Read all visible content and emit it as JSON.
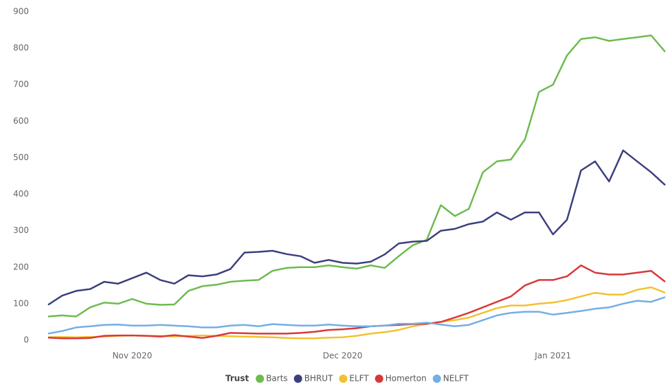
{
  "chart_data": {
    "type": "line",
    "categories": [
      null,
      null,
      null,
      null,
      null,
      null,
      "Nov 2020",
      null,
      null,
      null,
      null,
      null,
      null,
      null,
      null,
      null,
      null,
      null,
      null,
      null,
      null,
      "Dec 2020",
      null,
      null,
      null,
      null,
      null,
      null,
      null,
      null,
      null,
      null,
      null,
      null,
      null,
      null,
      "Jan 2021",
      null,
      null,
      null,
      null,
      null,
      null,
      null,
      null
    ],
    "ylim": [
      0,
      900
    ],
    "yticks": [
      0,
      100,
      200,
      300,
      400,
      500,
      600,
      700,
      800,
      900
    ],
    "grid": false,
    "legend_title": "Trust",
    "series": [
      {
        "name": "Barts",
        "color": "#6dbb4f",
        "values": [
          65,
          68,
          65,
          90,
          103,
          100,
          113,
          100,
          97,
          98,
          135,
          148,
          152,
          160,
          163,
          165,
          190,
          198,
          200,
          200,
          205,
          200,
          196,
          205,
          198,
          230,
          260,
          275,
          370,
          340,
          360,
          460,
          490,
          495,
          550,
          680,
          700,
          780,
          825,
          830,
          820,
          825,
          830,
          835,
          790
        ]
      },
      {
        "name": "BHRUT",
        "color": "#3b3f7c",
        "values": [
          97,
          122,
          135,
          140,
          160,
          155,
          170,
          185,
          165,
          155,
          178,
          175,
          180,
          195,
          240,
          242,
          245,
          236,
          230,
          212,
          220,
          212,
          210,
          215,
          235,
          265,
          270,
          272,
          300,
          305,
          318,
          325,
          350,
          330,
          350,
          350,
          290,
          330,
          465,
          490,
          435,
          520,
          490,
          460,
          425
        ]
      },
      {
        "name": "ELFT",
        "color": "#f2c12e",
        "values": [
          8,
          9,
          8,
          9,
          10,
          12,
          13,
          12,
          12,
          10,
          12,
          13,
          12,
          11,
          10,
          9,
          8,
          6,
          5,
          5,
          7,
          8,
          12,
          18,
          22,
          28,
          38,
          45,
          50,
          55,
          62,
          75,
          88,
          95,
          95,
          100,
          103,
          110,
          120,
          130,
          125,
          125,
          138,
          145,
          130
        ]
      },
      {
        "name": "Homerton",
        "color": "#d9383a",
        "values": [
          7,
          5,
          5,
          6,
          12,
          13,
          13,
          12,
          10,
          14,
          10,
          6,
          12,
          20,
          19,
          18,
          18,
          18,
          20,
          23,
          28,
          30,
          33,
          38,
          40,
          42,
          44,
          45,
          50,
          62,
          75,
          90,
          105,
          120,
          150,
          165,
          165,
          175,
          205,
          185,
          180,
          180,
          185,
          190,
          160
        ]
      },
      {
        "name": "NELFT",
        "color": "#73aee6",
        "values": [
          18,
          25,
          35,
          38,
          42,
          43,
          40,
          40,
          42,
          40,
          38,
          35,
          35,
          40,
          42,
          38,
          44,
          42,
          40,
          40,
          43,
          40,
          38,
          38,
          40,
          45,
          45,
          48,
          43,
          38,
          42,
          55,
          68,
          75,
          78,
          78,
          70,
          75,
          80,
          86,
          90,
          100,
          108,
          105,
          118
        ]
      }
    ]
  }
}
